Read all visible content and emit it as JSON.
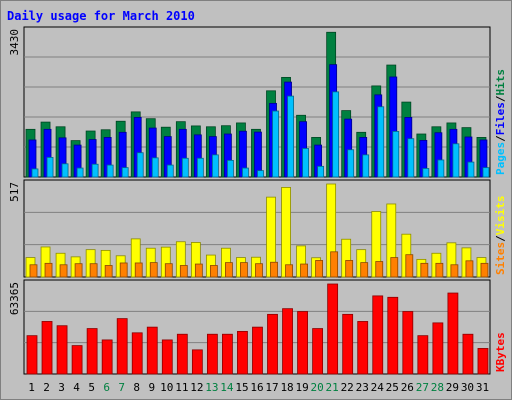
{
  "title": "Daily usage for March 2010",
  "colors": {
    "background": "#c0c0c0",
    "pages": "#00c0ff",
    "files": "#0000ff",
    "hits": "#008040",
    "sites": "#ff8000",
    "visits": "#ffff00",
    "kbytes": "#ff0000",
    "weekend_tick": "#008040",
    "weekday_tick": "#000000"
  },
  "chart_data": [
    {
      "type": "bar",
      "panel": "hits-files-pages",
      "ymax_label": "3430",
      "ymax": 3430,
      "legend": [
        "Pages",
        "/",
        "Files",
        "/",
        "Hits"
      ],
      "categories": [
        "1",
        "2",
        "3",
        "4",
        "5",
        "6",
        "7",
        "8",
        "9",
        "10",
        "11",
        "12",
        "13",
        "14",
        "15",
        "16",
        "17",
        "18",
        "19",
        "20",
        "21",
        "22",
        "23",
        "24",
        "25",
        "26",
        "27",
        "28",
        "29",
        "30",
        "31"
      ],
      "weekend_days": [
        "6",
        "7",
        "13",
        "14",
        "20",
        "21",
        "27",
        "28"
      ],
      "series": [
        {
          "name": "Hits",
          "values": [
            1120,
            1290,
            1180,
            855,
            1080,
            1110,
            1310,
            1530,
            1370,
            1170,
            1300,
            1200,
            1180,
            1205,
            1270,
            1120,
            2025,
            2340,
            1450,
            930,
            3400,
            1560,
            1050,
            2140,
            2630,
            1760,
            1010,
            1180,
            1270,
            1160,
            930
          ]
        },
        {
          "name": "Files",
          "values": [
            870,
            1120,
            920,
            750,
            880,
            930,
            1050,
            1400,
            1150,
            950,
            1120,
            990,
            950,
            1010,
            1075,
            1055,
            1730,
            2230,
            1300,
            750,
            2640,
            1360,
            930,
            1930,
            2350,
            1400,
            860,
            1040,
            1120,
            940,
            870
          ]
        },
        {
          "name": "Pages",
          "values": [
            190,
            460,
            310,
            210,
            300,
            280,
            220,
            570,
            450,
            280,
            440,
            440,
            520,
            390,
            210,
            150,
            1550,
            1900,
            670,
            250,
            2000,
            640,
            520,
            1650,
            1070,
            900,
            200,
            400,
            780,
            350,
            220
          ]
        }
      ]
    },
    {
      "type": "bar",
      "panel": "visits-sites",
      "ymax_label": "517",
      "ymax": 517,
      "legend": [
        "Sites",
        "/",
        "Visits"
      ],
      "categories": [
        "1",
        "2",
        "3",
        "4",
        "5",
        "6",
        "7",
        "8",
        "9",
        "10",
        "11",
        "12",
        "13",
        "14",
        "15",
        "16",
        "17",
        "18",
        "19",
        "20",
        "21",
        "22",
        "23",
        "24",
        "25",
        "26",
        "27",
        "28",
        "29",
        "30",
        "31"
      ],
      "series": [
        {
          "name": "Visits",
          "values": [
            108,
            167,
            132,
            112,
            152,
            148,
            118,
            212,
            160,
            166,
            196,
            192,
            122,
            160,
            108,
            110,
            444,
            498,
            173,
            107,
            517,
            210,
            152,
            364,
            406,
            238,
            98,
            132,
            190,
            162,
            108
          ]
        },
        {
          "name": "Sites",
          "values": [
            68,
            76,
            68,
            74,
            74,
            64,
            78,
            78,
            80,
            74,
            64,
            72,
            64,
            80,
            80,
            74,
            82,
            68,
            72,
            92,
            140,
            92,
            80,
            86,
            108,
            124,
            76,
            76,
            68,
            90,
            76
          ]
        }
      ]
    },
    {
      "type": "bar",
      "panel": "kbytes",
      "ymax_label": "63365",
      "ymax": 63365,
      "legend": [
        "KBytes"
      ],
      "categories": [
        "1",
        "2",
        "3",
        "4",
        "5",
        "6",
        "7",
        "8",
        "9",
        "10",
        "11",
        "12",
        "13",
        "14",
        "15",
        "16",
        "17",
        "18",
        "19",
        "20",
        "21",
        "22",
        "23",
        "24",
        "25",
        "26",
        "27",
        "28",
        "29",
        "30",
        "31"
      ],
      "series": [
        {
          "name": "KBytes",
          "values": [
            27000,
            37000,
            34000,
            20000,
            32000,
            24000,
            39000,
            29000,
            33000,
            24000,
            28000,
            17000,
            28000,
            28000,
            30000,
            33000,
            42000,
            46000,
            44000,
            32000,
            63365,
            42000,
            37000,
            55000,
            54000,
            44000,
            27000,
            36000,
            57000,
            28000,
            18000
          ]
        }
      ]
    }
  ]
}
